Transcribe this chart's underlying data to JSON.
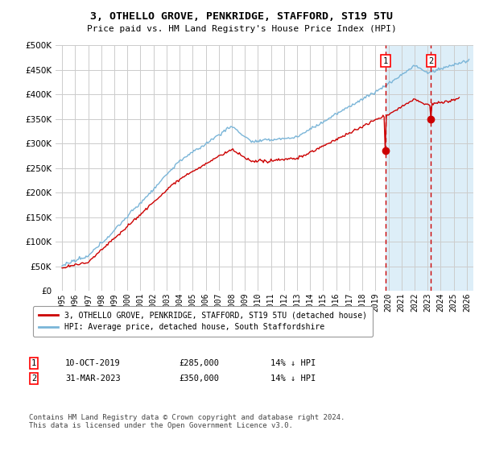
{
  "title": "3, OTHELLO GROVE, PENKRIDGE, STAFFORD, ST19 5TU",
  "subtitle": "Price paid vs. HM Land Registry's House Price Index (HPI)",
  "ylim": [
    0,
    500000
  ],
  "yticks": [
    0,
    50000,
    100000,
    150000,
    200000,
    250000,
    300000,
    350000,
    400000,
    450000,
    500000
  ],
  "xlim_start": 1994.5,
  "xlim_end": 2026.5,
  "hpi_color": "#7ab5d8",
  "price_color": "#cc0000",
  "marker1_date": 2019.78,
  "marker1_price": 285000,
  "marker2_date": 2023.25,
  "marker2_price": 350000,
  "legend_entry1": "3, OTHELLO GROVE, PENKRIDGE, STAFFORD, ST19 5TU (detached house)",
  "legend_entry2": "HPI: Average price, detached house, South Staffordshire",
  "annotation1_label": "1",
  "annotation1_date": "10-OCT-2019",
  "annotation1_price": "£285,000",
  "annotation1_hpi": "14% ↓ HPI",
  "annotation2_label": "2",
  "annotation2_date": "31-MAR-2023",
  "annotation2_price": "£350,000",
  "annotation2_hpi": "14% ↓ HPI",
  "footnote": "Contains HM Land Registry data © Crown copyright and database right 2024.\nThis data is licensed under the Open Government Licence v3.0.",
  "bg_color": "#ffffff",
  "grid_color": "#cccccc",
  "shade_color": "#ddeef8"
}
